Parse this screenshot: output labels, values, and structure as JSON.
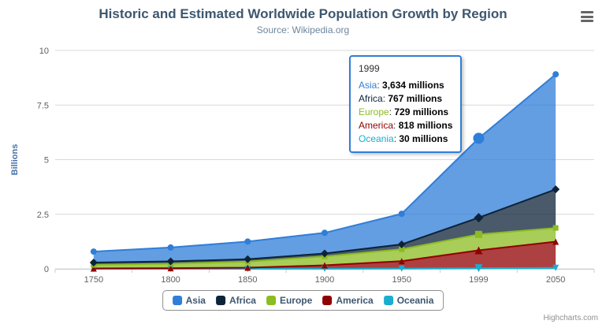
{
  "chart": {
    "title": "Historic and Estimated Worldwide Population Growth by Region",
    "subtitle": "Source: Wikipedia.org",
    "credits": "Highcharts.com"
  },
  "icons": {
    "export_menu": "hamburger-menu-icon"
  },
  "chart_data": {
    "type": "area",
    "stacking": "normal",
    "title": "Historic and Estimated Worldwide Population Growth by Region",
    "subtitle": "Source: Wikipedia.org",
    "categories": [
      "1750",
      "1800",
      "1850",
      "1900",
      "1950",
      "1999",
      "2050"
    ],
    "series": [
      {
        "name": "Asia",
        "color": "#2f7ed8",
        "marker": "circle",
        "values": [
          502,
          635,
          809,
          947,
          1402,
          3634,
          5268
        ]
      },
      {
        "name": "Africa",
        "color": "#0d233a",
        "marker": "diamond",
        "values": [
          106,
          107,
          111,
          133,
          221,
          767,
          1766
        ]
      },
      {
        "name": "Europe",
        "color": "#8bbc21",
        "marker": "square",
        "values": [
          163,
          203,
          276,
          408,
          547,
          729,
          628
        ]
      },
      {
        "name": "America",
        "color": "#910000",
        "marker": "triangle",
        "values": [
          18,
          31,
          54,
          156,
          339,
          818,
          1201
        ]
      },
      {
        "name": "Oceania",
        "color": "#1aadce",
        "marker": "triangle-down",
        "values": [
          2,
          2,
          2,
          6,
          13,
          30,
          46
        ]
      }
    ],
    "values_unit": "millions",
    "ylabel": "Billions",
    "yticks": [
      0,
      2.5,
      5,
      7.5,
      10
    ],
    "ylim": [
      0,
      10
    ],
    "grid": "horizontal",
    "legend_position": "bottom"
  },
  "tooltip": {
    "header": "1999",
    "rows": [
      {
        "name": "Asia",
        "color": "#2f7ed8",
        "value": "3,634 millions"
      },
      {
        "name": "Africa",
        "color": "#0d233a",
        "value": "767 millions"
      },
      {
        "name": "Europe",
        "color": "#8bbc21",
        "value": "729 millions"
      },
      {
        "name": "America",
        "color": "#910000",
        "value": "818 millions"
      },
      {
        "name": "Oceania",
        "color": "#1aadce",
        "value": "30 millions"
      }
    ]
  },
  "hover": {
    "series": "Asia",
    "category_index": 5
  }
}
